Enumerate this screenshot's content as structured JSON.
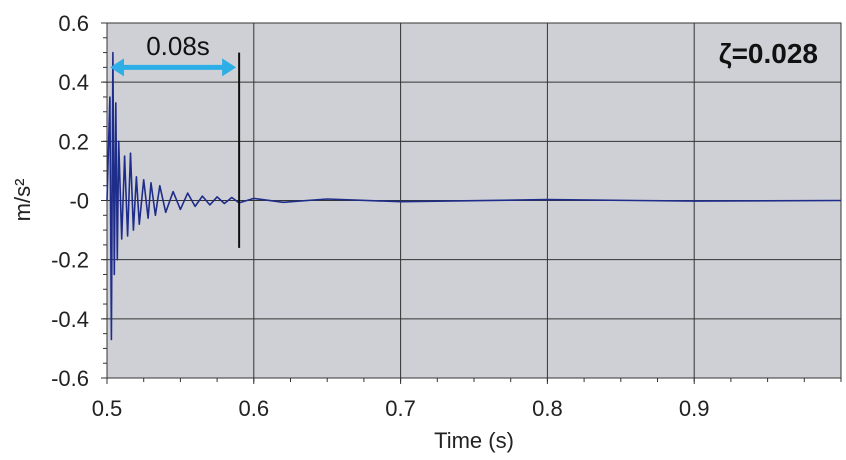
{
  "chart_data": {
    "type": "line",
    "title": "",
    "xlabel": "Time (s)",
    "ylabel": "m/s²",
    "xlim": [
      0.5,
      1.0
    ],
    "ylim": [
      -0.6,
      0.6
    ],
    "x_ticks": [
      "0.5",
      "0.6",
      "0.7",
      "0.8",
      "0.9"
    ],
    "y_ticks": [
      "0.6",
      "0.4",
      "0.2",
      "-0",
      "-0.2",
      "-0.4",
      "-0.6"
    ],
    "grid": true,
    "colors": {
      "plot_bg": "#cfd0d6",
      "series": "#1f2d8a",
      "arrow": "#2eaee6",
      "grid": "#333333"
    },
    "series": [
      {
        "x": [
          0.5,
          0.502,
          0.503,
          0.504,
          0.505,
          0.506,
          0.507,
          0.508,
          0.51,
          0.512,
          0.514,
          0.516,
          0.518,
          0.52,
          0.522,
          0.525,
          0.528,
          0.53,
          0.533,
          0.536,
          0.54,
          0.545,
          0.55,
          0.555,
          0.56,
          0.565,
          0.57,
          0.575,
          0.58,
          0.585,
          0.59,
          0.6,
          0.62,
          0.65,
          0.7,
          0.8,
          0.9,
          1.0
        ],
        "y": [
          0.0,
          0.35,
          -0.47,
          0.5,
          -0.25,
          0.33,
          -0.2,
          0.2,
          -0.13,
          0.15,
          -0.12,
          0.16,
          -0.1,
          0.08,
          -0.08,
          0.07,
          -0.06,
          0.06,
          -0.05,
          0.05,
          -0.04,
          0.03,
          -0.03,
          0.025,
          -0.02,
          0.015,
          -0.015,
          0.012,
          -0.01,
          0.01,
          -0.008,
          0.007,
          -0.006,
          0.005,
          -0.004,
          0.003,
          -0.002,
          0.0
        ]
      }
    ],
    "annotations": {
      "interval_label": "0.08s",
      "interval_start": 0.5,
      "interval_end": 0.59,
      "damping_label": "ζ=0.028"
    }
  }
}
